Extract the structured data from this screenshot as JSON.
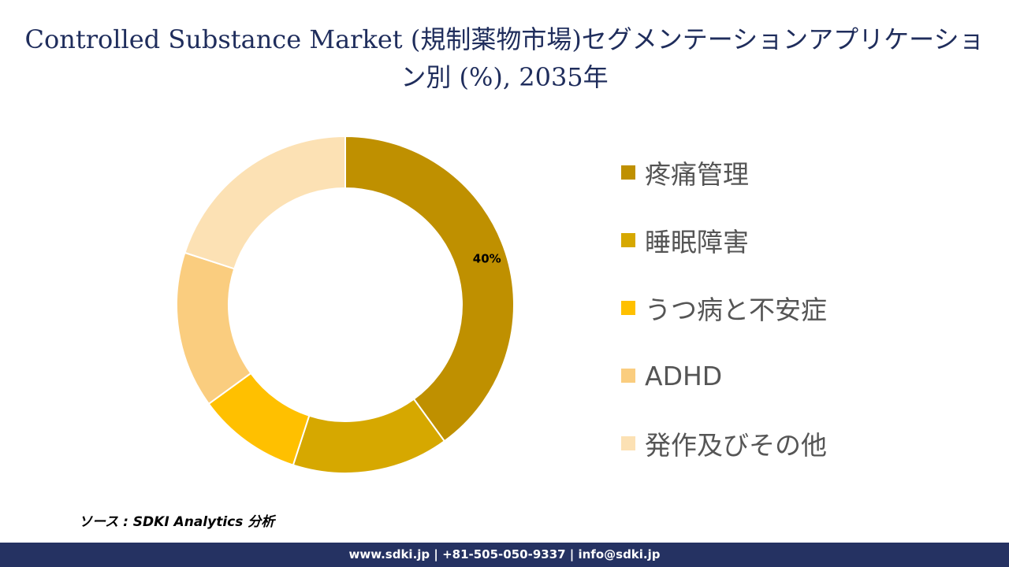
{
  "title": "Controlled Substance Market (規制薬物市場)セグメンテーションアプリケーション別 (%), 2035年",
  "chart_data": {
    "type": "pie",
    "title": "Controlled Substance Market (規制薬物市場)セグメンテーションアプリケーション別 (%), 2035年",
    "categories": [
      "疼痛管理",
      "睡眠障害",
      "うつ病と不安症",
      "ADHD",
      "発作及びその他"
    ],
    "values": [
      40,
      15,
      10,
      15,
      20
    ],
    "colors": [
      "#BF9000",
      "#D6A800",
      "#FFC000",
      "#FACD7F",
      "#FCE1B4"
    ],
    "data_labels": [
      "40%",
      "",
      "",
      "",
      ""
    ],
    "donut": true,
    "legend_position": "right",
    "start_angle_deg": 0,
    "direction": "clockwise"
  },
  "source_text": "ソース : SDKI Analytics 分析",
  "footer_text": "www.sdki.jp | +81-505-050-9337 | info@sdki.jp"
}
